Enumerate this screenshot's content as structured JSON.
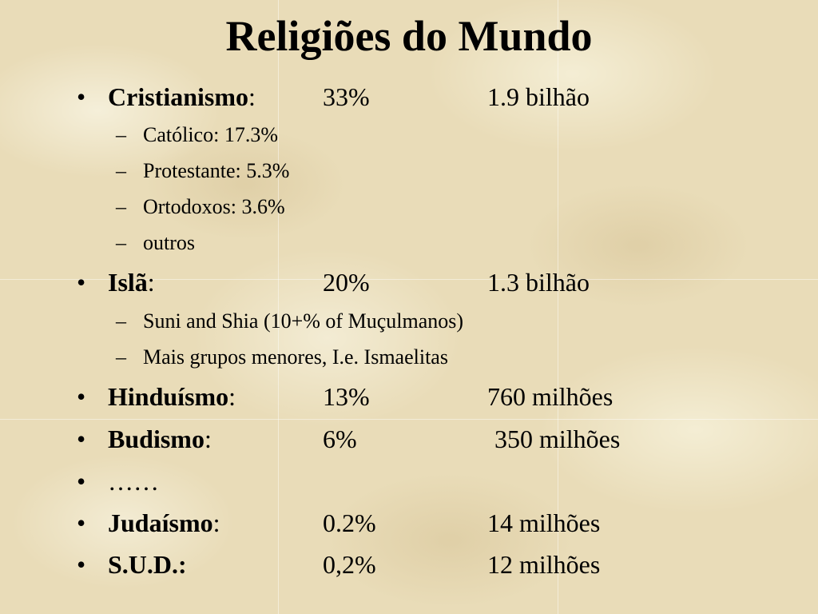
{
  "title": "Religiões do Mundo",
  "items": [
    {
      "name": "Cristianismo",
      "suffix": ":",
      "percent": "33%",
      "count": "1.9 bilhão",
      "sub": [
        "Católico: 17.3%",
        "Protestante: 5.3%",
        "Ortodoxos: 3.6%",
        "outros"
      ]
    },
    {
      "name": "Islã",
      "suffix": ":",
      "percent": "20%",
      "count": "1.3 bilhão",
      "sub": [
        "Suni and Shia (10+% of Muçulmanos)",
        "Mais grupos menores, I.e. Ismaelitas"
      ]
    },
    {
      "name": "Hinduísmo",
      "suffix": ":",
      "percent": "13%",
      "count": "760 milhões"
    },
    {
      "name": "Budismo",
      "suffix": ":",
      "percent": "6%",
      "count": "350 milhões"
    },
    {
      "name": "……"
    },
    {
      "name": "Judaísmo",
      "suffix": ":",
      "percent": "0.2%",
      "count": "14 milhões"
    },
    {
      "name": "S.U.D.:",
      "suffix": "",
      "percent": "0,2%",
      "count": "12 milhões"
    }
  ],
  "bullet_glyph": "•",
  "dash_glyph": "–"
}
